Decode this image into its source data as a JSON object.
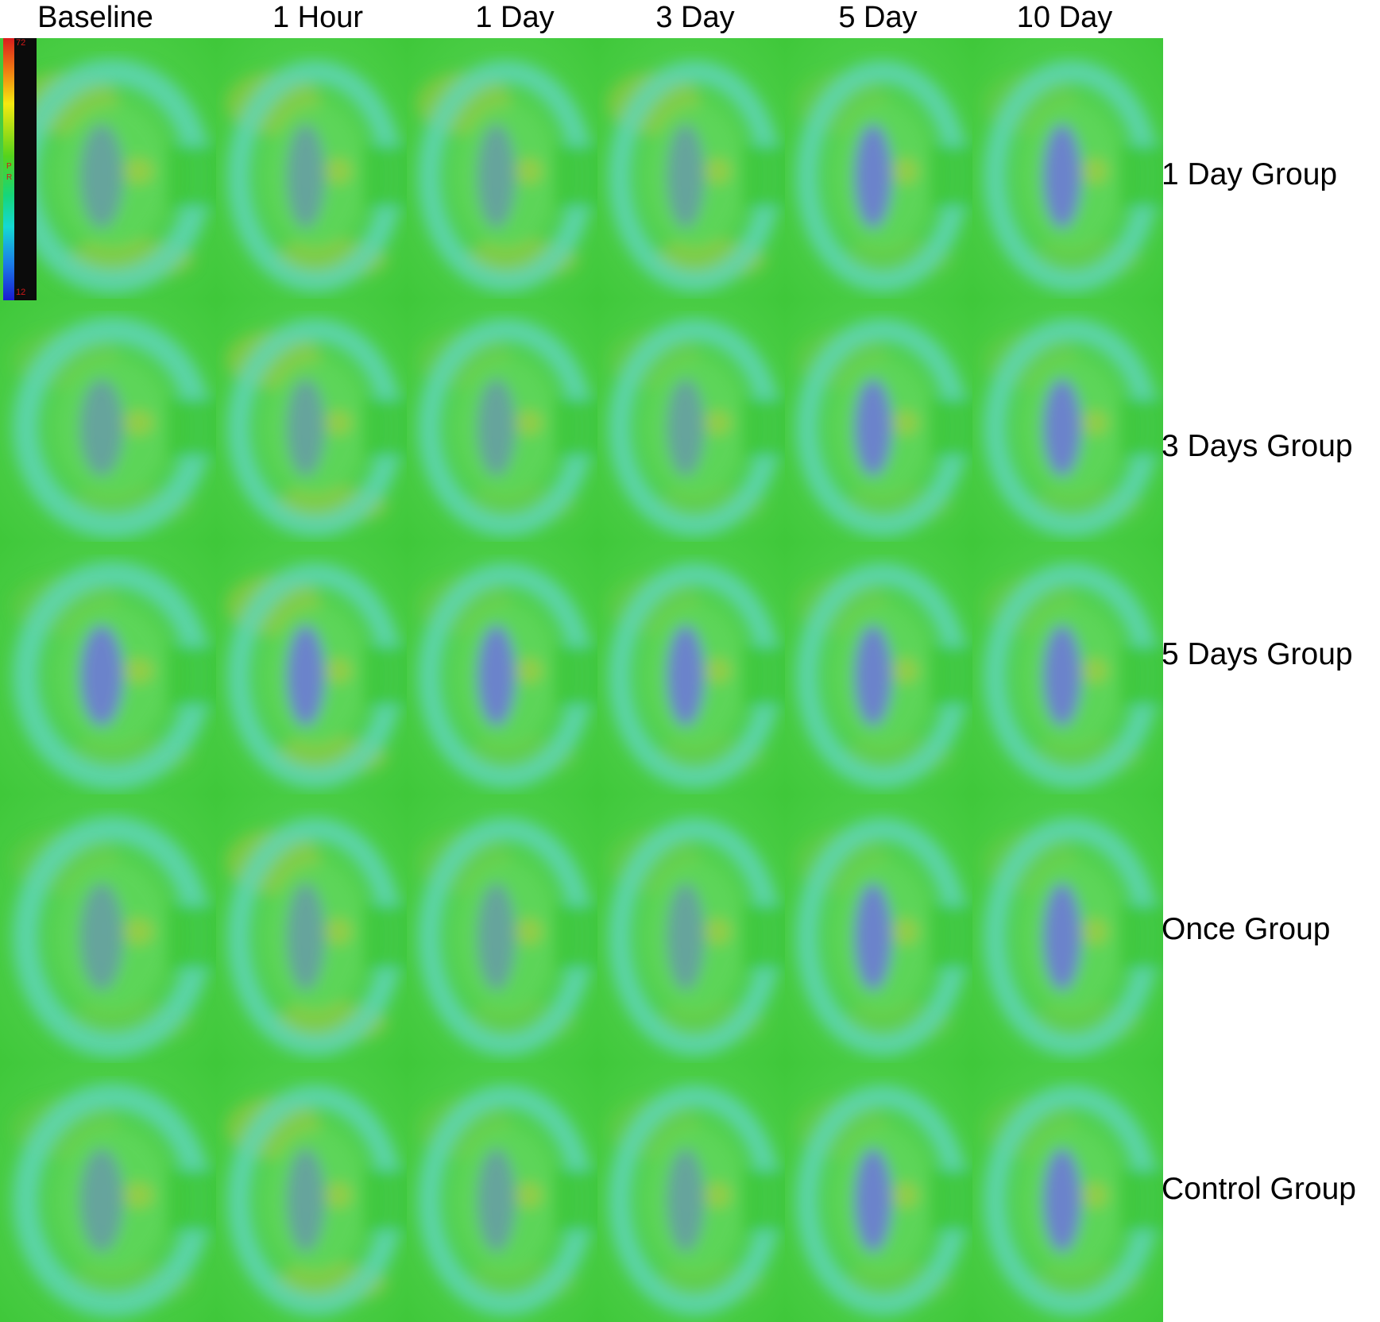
{
  "columns": [
    "Baseline",
    "1 Hour",
    "1 Day",
    "3 Day",
    "5 Day",
    "10 Day"
  ],
  "rows": [
    "1 Day Group",
    "3 Days Group",
    "5  Days Group",
    "Once Group",
    "Control Group"
  ],
  "scale": {
    "max": "72",
    "min": "12",
    "letters": [
      "P",
      "R"
    ]
  },
  "colors": {
    "background_green": "#3fc83a",
    "cortex_green": "#5ed65a",
    "cyan": "#5fd6c6",
    "medulla_blue": "#6f74e0",
    "warm": "#b9c83a"
  },
  "tiles_note_icons": "kidney-map-image"
}
